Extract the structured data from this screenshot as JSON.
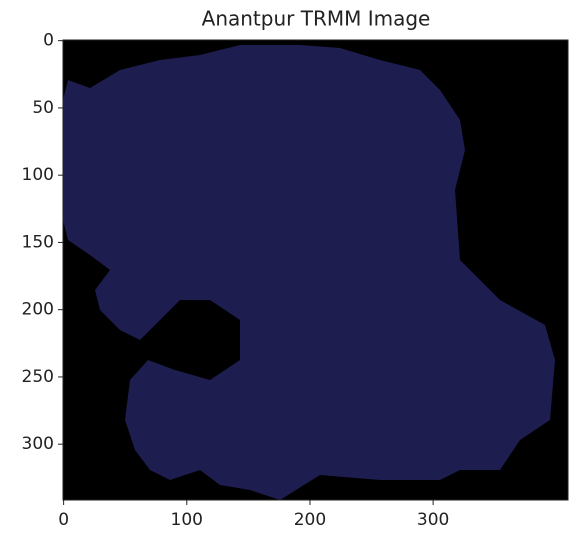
{
  "chart_data": {
    "type": "image",
    "title": "Anantpur TRMM Image",
    "xlim": [
      -0.5,
      409.5
    ],
    "ylim": [
      341.5,
      -0.5
    ],
    "xticks": [
      0,
      100,
      200,
      300
    ],
    "yticks": [
      0,
      50,
      100,
      150,
      200,
      250,
      300
    ],
    "background": "#000000",
    "color": "#1e1d50"
  }
}
